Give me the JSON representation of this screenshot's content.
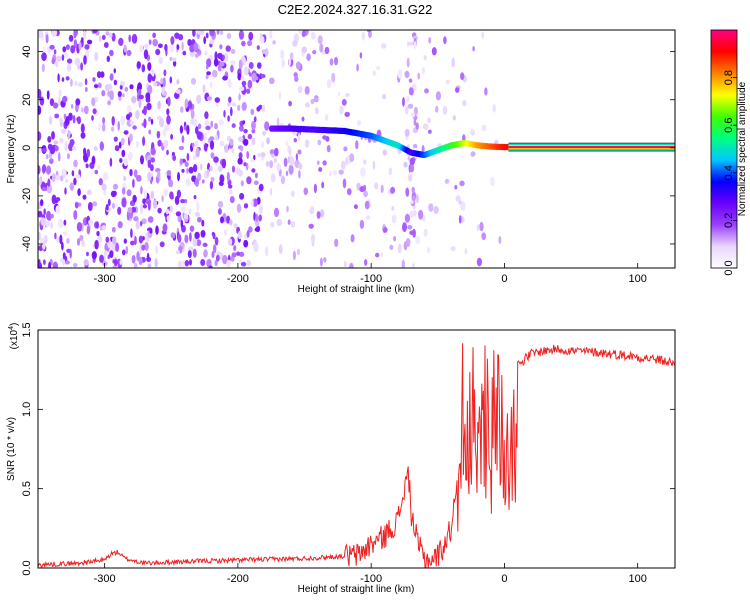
{
  "title": "C2E2.2024.327.16.31.G22",
  "colorbar": {
    "label": "Normalized spectral amplitude",
    "ticks": [
      "0.0",
      "0.2",
      "0.4",
      "0.6",
      "0.8"
    ],
    "tick_values": [
      0.0,
      0.2,
      0.4,
      0.6,
      0.8
    ],
    "range": [
      0,
      1
    ],
    "colormap": [
      "#ffffff",
      "#e8d6ff",
      "#9a40ff",
      "#6a00ff",
      "#0000ff",
      "#00c8ff",
      "#00ff80",
      "#40ff00",
      "#ffff00",
      "#ff8000",
      "#ff0000",
      "#ff0080"
    ]
  },
  "chart_data": [
    {
      "type": "heatmap",
      "xlabel": "Height of straight line (km)",
      "ylabel": "Frequency (Hz)",
      "xlim": [
        -350,
        128
      ],
      "ylim": [
        -50,
        49
      ],
      "xticks": [
        -300,
        -200,
        -100,
        0,
        100
      ],
      "xtick_labels": [
        "-300",
        "-200",
        "-100",
        "0",
        "100"
      ],
      "yticks": [
        -40,
        -20,
        0,
        20,
        40
      ],
      "ytick_labels": [
        "-40",
        "-20",
        "0",
        "20",
        "40"
      ],
      "ridge": {
        "description_values_only": true,
        "x": [
          -175,
          -160,
          -140,
          -120,
          -100,
          -90,
          -80,
          -70,
          -60,
          -50,
          -40,
          -30,
          -20,
          -10,
          0,
          128
        ],
        "y": [
          8,
          8,
          7.5,
          7,
          5,
          3,
          1,
          -2,
          -3,
          -1,
          1,
          2,
          1,
          0.5,
          0.3,
          0.3
        ],
        "amplitude": [
          0.25,
          0.3,
          0.3,
          0.35,
          0.4,
          0.45,
          0.5,
          0.3,
          0.4,
          0.5,
          0.6,
          0.7,
          0.8,
          0.85,
          0.9,
          1.0
        ]
      }
    },
    {
      "type": "line",
      "xlabel": "Height of straight line (km)",
      "ylabel": "SNR (10 * v/v)",
      "scale_note": "(x10",
      "scale_exp": "4",
      "scale_close": ")",
      "xlim": [
        -350,
        128
      ],
      "ylim": [
        0,
        1.5
      ],
      "xticks": [
        -300,
        -200,
        -100,
        0,
        100
      ],
      "xtick_labels": [
        "-300",
        "-200",
        "-100",
        "0",
        "100"
      ],
      "yticks": [
        0.0,
        0.5,
        1.0,
        1.5
      ],
      "ytick_labels": [
        "0.0",
        "0.5",
        "1.0",
        "1.5"
      ],
      "series": [
        {
          "color": "#ee2222",
          "x": [
            -350,
            -320,
            -300,
            -295,
            -290,
            -285,
            -270,
            -240,
            -200,
            -150,
            -110,
            -100,
            -90,
            -85,
            -80,
            -75,
            -72,
            -70,
            -65,
            -60,
            -55,
            -50,
            -45,
            -40,
            -35,
            -32,
            -30,
            -28,
            -25,
            -20,
            -15,
            -10,
            -5,
            0,
            5,
            10,
            20,
            30,
            40,
            50,
            70,
            90,
            110,
            128
          ],
          "y": [
            0.02,
            0.03,
            0.05,
            0.09,
            0.1,
            0.06,
            0.03,
            0.04,
            0.05,
            0.06,
            0.08,
            0.15,
            0.2,
            0.25,
            0.3,
            0.5,
            0.6,
            0.35,
            0.15,
            0.06,
            0.05,
            0.08,
            0.15,
            0.25,
            0.6,
            1.2,
            1.45,
            0.9,
            1.3,
            0.8,
            1.45,
            1.0,
            1.4,
            1.05,
            1.2,
            1.28,
            1.35,
            1.37,
            1.38,
            1.37,
            1.36,
            1.34,
            1.32,
            1.29
          ]
        }
      ]
    }
  ]
}
